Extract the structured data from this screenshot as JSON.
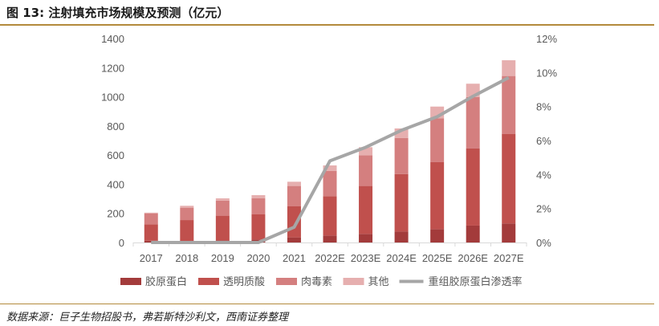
{
  "title": "图 13:  注射填充市场规模及预测（亿元）",
  "source": "数据来源：巨子生物招股书，弗若斯特沙利文，西南证券整理",
  "chart_data": {
    "type": "bar",
    "stacked": true,
    "categories": [
      "2017",
      "2018",
      "2019",
      "2020",
      "2021",
      "2022E",
      "2023E",
      "2024E",
      "2025E",
      "2026E",
      "2027E"
    ],
    "series": [
      {
        "name": "胶原蛋白",
        "values": [
          12,
          10,
          15,
          20,
          35,
          48,
          59,
          75,
          92,
          116,
          131
        ],
        "color": "#a33b3b"
      },
      {
        "name": "透明质酸",
        "values": [
          113,
          144,
          169,
          173,
          213,
          270,
          329,
          395,
          461,
          529,
          615
        ],
        "color": "#c0504d"
      },
      {
        "name": "肉毒素",
        "values": [
          75,
          85,
          103,
          110,
          140,
          174,
          211,
          248,
          300,
          353,
          397
        ],
        "color": "#d47f7f"
      },
      {
        "name": "其他",
        "values": [
          5,
          13,
          16,
          22,
          29,
          37,
          55,
          65,
          80,
          92,
          108
        ],
        "color": "#e6afaf"
      }
    ],
    "line_series": {
      "name": "重组胶原蛋白渗透率",
      "values": [
        0,
        0,
        0,
        0,
        0.9,
        4.8,
        5.6,
        6.6,
        7.4,
        8.6,
        9.7
      ],
      "color": "#a6a6a6",
      "axis": "right",
      "unit": "%"
    },
    "ylim": [
      0,
      1400
    ],
    "yticks": [
      "0",
      "200",
      "400",
      "600",
      "800",
      "1000",
      "1200",
      "1400"
    ],
    "y2lim": [
      0,
      12
    ],
    "y2ticks": [
      "0%",
      "2%",
      "4%",
      "6%",
      "8%",
      "10%",
      "12%"
    ],
    "grid": false,
    "legend": "bottom"
  }
}
